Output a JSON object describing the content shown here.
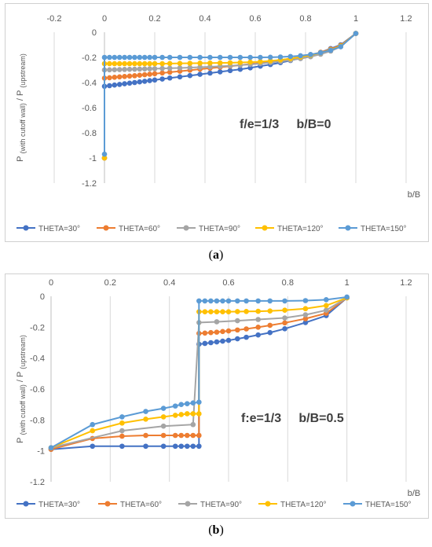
{
  "captions": {
    "a": "(a)",
    "b": "(b)"
  },
  "caption_letters": {
    "a": "a",
    "b": "b"
  },
  "chart_data": [
    {
      "type": "line",
      "panel": "a",
      "annotation": "f/e=1/3     b/B=0",
      "xlabel": "b/B",
      "ylabel_main": "P",
      "ylabel_sub1": "(with cutoff wall)",
      "ylabel_sep": "/ P",
      "ylabel_sub2": "(upstream)",
      "xlim": [
        -0.2,
        1.2
      ],
      "ylim": [
        -1.2,
        0
      ],
      "xticks": [
        "-0.2",
        "0",
        "0.2",
        "0.4",
        "0.6",
        "0.8",
        "1",
        "1.2"
      ],
      "yticks": [
        "0",
        "-0.2",
        "-0.4",
        "-0.6",
        "-0.8",
        "-1",
        "-1.2"
      ],
      "grid": "vertical",
      "legend_position": "bottom",
      "series": [
        {
          "name": "THETA=30°",
          "color": "#4472c4",
          "x": [
            0,
            0,
            0.02,
            0.04,
            0.06,
            0.08,
            0.1,
            0.12,
            0.14,
            0.16,
            0.18,
            0.2,
            0.23,
            0.26,
            0.3,
            0.34,
            0.38,
            0.42,
            0.46,
            0.5,
            0.54,
            0.58,
            0.62,
            0.66,
            0.7,
            0.74,
            0.78,
            0.82,
            0.86,
            0.9,
            0.94,
            1.0
          ],
          "y": [
            -1.0,
            -0.43,
            -0.425,
            -0.42,
            -0.415,
            -0.41,
            -0.405,
            -0.4,
            -0.395,
            -0.39,
            -0.385,
            -0.38,
            -0.372,
            -0.364,
            -0.355,
            -0.345,
            -0.335,
            -0.325,
            -0.315,
            -0.305,
            -0.295,
            -0.283,
            -0.27,
            -0.257,
            -0.242,
            -0.225,
            -0.205,
            -0.185,
            -0.16,
            -0.13,
            -0.1,
            -0.01
          ]
        },
        {
          "name": "THETA=60°",
          "color": "#ed7d31",
          "x": [
            0,
            0,
            0.02,
            0.04,
            0.06,
            0.08,
            0.1,
            0.12,
            0.14,
            0.16,
            0.18,
            0.2,
            0.23,
            0.26,
            0.3,
            0.34,
            0.38,
            0.42,
            0.46,
            0.5,
            0.54,
            0.58,
            0.62,
            0.66,
            0.7,
            0.74,
            0.78,
            0.82,
            0.86,
            0.9,
            0.94,
            1.0
          ],
          "y": [
            -1.0,
            -0.365,
            -0.362,
            -0.358,
            -0.355,
            -0.352,
            -0.349,
            -0.346,
            -0.342,
            -0.338,
            -0.334,
            -0.33,
            -0.324,
            -0.318,
            -0.31,
            -0.302,
            -0.294,
            -0.286,
            -0.278,
            -0.27,
            -0.262,
            -0.253,
            -0.244,
            -0.234,
            -0.222,
            -0.21,
            -0.196,
            -0.18,
            -0.16,
            -0.135,
            -0.105,
            -0.01
          ]
        },
        {
          "name": "THETA=90°",
          "color": "#a5a5a5",
          "x": [
            0,
            0,
            0.02,
            0.04,
            0.06,
            0.08,
            0.1,
            0.12,
            0.14,
            0.16,
            0.18,
            0.2,
            0.23,
            0.26,
            0.3,
            0.34,
            0.38,
            0.42,
            0.46,
            0.5,
            0.54,
            0.58,
            0.62,
            0.66,
            0.7,
            0.74,
            0.78,
            0.82,
            0.86,
            0.9,
            0.94,
            1.0
          ],
          "y": [
            -1.0,
            -0.3,
            -0.299,
            -0.298,
            -0.297,
            -0.296,
            -0.295,
            -0.294,
            -0.293,
            -0.292,
            -0.291,
            -0.29,
            -0.288,
            -0.286,
            -0.284,
            -0.281,
            -0.278,
            -0.275,
            -0.271,
            -0.267,
            -0.262,
            -0.256,
            -0.249,
            -0.241,
            -0.232,
            -0.222,
            -0.21,
            -0.195,
            -0.175,
            -0.15,
            -0.115,
            -0.01
          ]
        },
        {
          "name": "THETA=120°",
          "color": "#ffc000",
          "x": [
            0,
            0,
            0.02,
            0.04,
            0.06,
            0.08,
            0.1,
            0.12,
            0.14,
            0.16,
            0.18,
            0.2,
            0.23,
            0.26,
            0.3,
            0.34,
            0.38,
            0.42,
            0.46,
            0.5,
            0.54,
            0.58,
            0.62,
            0.66,
            0.7,
            0.74,
            0.78,
            0.82,
            0.86,
            0.9,
            0.94,
            1.0
          ],
          "y": [
            -1.0,
            -0.25,
            -0.25,
            -0.25,
            -0.25,
            -0.25,
            -0.25,
            -0.25,
            -0.25,
            -0.25,
            -0.25,
            -0.25,
            -0.25,
            -0.249,
            -0.248,
            -0.247,
            -0.246,
            -0.245,
            -0.244,
            -0.243,
            -0.241,
            -0.238,
            -0.234,
            -0.228,
            -0.22,
            -0.21,
            -0.197,
            -0.182,
            -0.163,
            -0.14,
            -0.11,
            -0.01
          ]
        },
        {
          "name": "THETA=150°",
          "color": "#5b9bd5",
          "x": [
            0,
            0,
            0.02,
            0.04,
            0.06,
            0.08,
            0.1,
            0.12,
            0.14,
            0.16,
            0.18,
            0.2,
            0.23,
            0.26,
            0.3,
            0.34,
            0.38,
            0.42,
            0.46,
            0.5,
            0.54,
            0.58,
            0.62,
            0.66,
            0.7,
            0.74,
            0.78,
            0.82,
            0.86,
            0.9,
            0.94,
            1.0
          ],
          "y": [
            -0.97,
            -0.2,
            -0.2,
            -0.2,
            -0.2,
            -0.2,
            -0.2,
            -0.2,
            -0.2,
            -0.2,
            -0.2,
            -0.2,
            -0.2,
            -0.2,
            -0.2,
            -0.2,
            -0.2,
            -0.2,
            -0.2,
            -0.2,
            -0.2,
            -0.2,
            -0.2,
            -0.199,
            -0.197,
            -0.193,
            -0.187,
            -0.177,
            -0.163,
            -0.143,
            -0.115,
            -0.01
          ]
        }
      ]
    },
    {
      "type": "line",
      "panel": "b",
      "annotation": "f:e=1/3     b/B=0.5",
      "xlabel": "b/B",
      "ylabel_main": "P",
      "ylabel_sub1": "(with cutoff wall)",
      "ylabel_sep": "/ P",
      "ylabel_sub2": "(upstream)",
      "xlim": [
        0,
        1.2
      ],
      "ylim": [
        -1.2,
        0
      ],
      "xticks": [
        "0",
        "0.2",
        "0.4",
        "0.6",
        "0.8",
        "1",
        "1.2"
      ],
      "yticks": [
        "0",
        "-0.2",
        "-0.4",
        "-0.6",
        "-0.8",
        "-1",
        "-1.2"
      ],
      "grid": "vertical",
      "legend_position": "bottom",
      "series": [
        {
          "name": "THETA=30°",
          "color": "#4472c4",
          "x": [
            0,
            0.14,
            0.24,
            0.32,
            0.38,
            0.42,
            0.44,
            0.46,
            0.48,
            0.5,
            0.5,
            0.52,
            0.54,
            0.56,
            0.58,
            0.6,
            0.63,
            0.66,
            0.7,
            0.74,
            0.79,
            0.86,
            0.93,
            1.0
          ],
          "y": [
            -0.99,
            -0.97,
            -0.97,
            -0.97,
            -0.97,
            -0.97,
            -0.97,
            -0.97,
            -0.97,
            -0.97,
            -0.31,
            -0.305,
            -0.3,
            -0.295,
            -0.29,
            -0.285,
            -0.275,
            -0.265,
            -0.25,
            -0.235,
            -0.21,
            -0.17,
            -0.125,
            -0.01
          ]
        },
        {
          "name": "THETA=60°",
          "color": "#ed7d31",
          "x": [
            0,
            0.14,
            0.24,
            0.32,
            0.38,
            0.42,
            0.44,
            0.46,
            0.48,
            0.5,
            0.5,
            0.52,
            0.54,
            0.56,
            0.58,
            0.6,
            0.63,
            0.66,
            0.7,
            0.74,
            0.79,
            0.86,
            0.93,
            1.0
          ],
          "y": [
            -0.99,
            -0.92,
            -0.905,
            -0.9,
            -0.9,
            -0.9,
            -0.9,
            -0.9,
            -0.9,
            -0.9,
            -0.24,
            -0.238,
            -0.235,
            -0.232,
            -0.228,
            -0.224,
            -0.218,
            -0.211,
            -0.2,
            -0.188,
            -0.172,
            -0.145,
            -0.11,
            -0.01
          ]
        },
        {
          "name": "THETA=90°",
          "color": "#a5a5a5",
          "x": [
            0,
            0.24,
            0.38,
            0.48,
            0.5,
            0.56,
            0.63,
            0.7,
            0.79,
            0.86,
            0.93,
            1.0
          ],
          "y": [
            -0.98,
            -0.87,
            -0.84,
            -0.83,
            -0.17,
            -0.165,
            -0.158,
            -0.15,
            -0.14,
            -0.12,
            -0.09,
            -0.01
          ]
        },
        {
          "name": "THETA=120°",
          "color": "#ffc000",
          "x": [
            0,
            0.14,
            0.24,
            0.32,
            0.38,
            0.42,
            0.44,
            0.46,
            0.48,
            0.5,
            0.5,
            0.52,
            0.54,
            0.56,
            0.58,
            0.6,
            0.63,
            0.66,
            0.7,
            0.74,
            0.79,
            0.86,
            0.93,
            1.0
          ],
          "y": [
            -0.98,
            -0.87,
            -0.82,
            -0.795,
            -0.78,
            -0.77,
            -0.765,
            -0.76,
            -0.76,
            -0.76,
            -0.1,
            -0.1,
            -0.1,
            -0.1,
            -0.1,
            -0.1,
            -0.099,
            -0.098,
            -0.097,
            -0.095,
            -0.09,
            -0.08,
            -0.06,
            -0.01
          ]
        },
        {
          "name": "THETA=150°",
          "color": "#5b9bd5",
          "x": [
            0,
            0.14,
            0.24,
            0.32,
            0.38,
            0.42,
            0.44,
            0.46,
            0.48,
            0.5,
            0.5,
            0.52,
            0.54,
            0.56,
            0.58,
            0.6,
            0.63,
            0.66,
            0.7,
            0.74,
            0.79,
            0.86,
            0.93,
            1.0
          ],
          "y": [
            -0.98,
            -0.83,
            -0.78,
            -0.745,
            -0.725,
            -0.71,
            -0.7,
            -0.695,
            -0.69,
            -0.685,
            -0.03,
            -0.03,
            -0.03,
            -0.03,
            -0.03,
            -0.03,
            -0.03,
            -0.03,
            -0.03,
            -0.03,
            -0.03,
            -0.028,
            -0.022,
            -0.005
          ]
        }
      ]
    }
  ]
}
